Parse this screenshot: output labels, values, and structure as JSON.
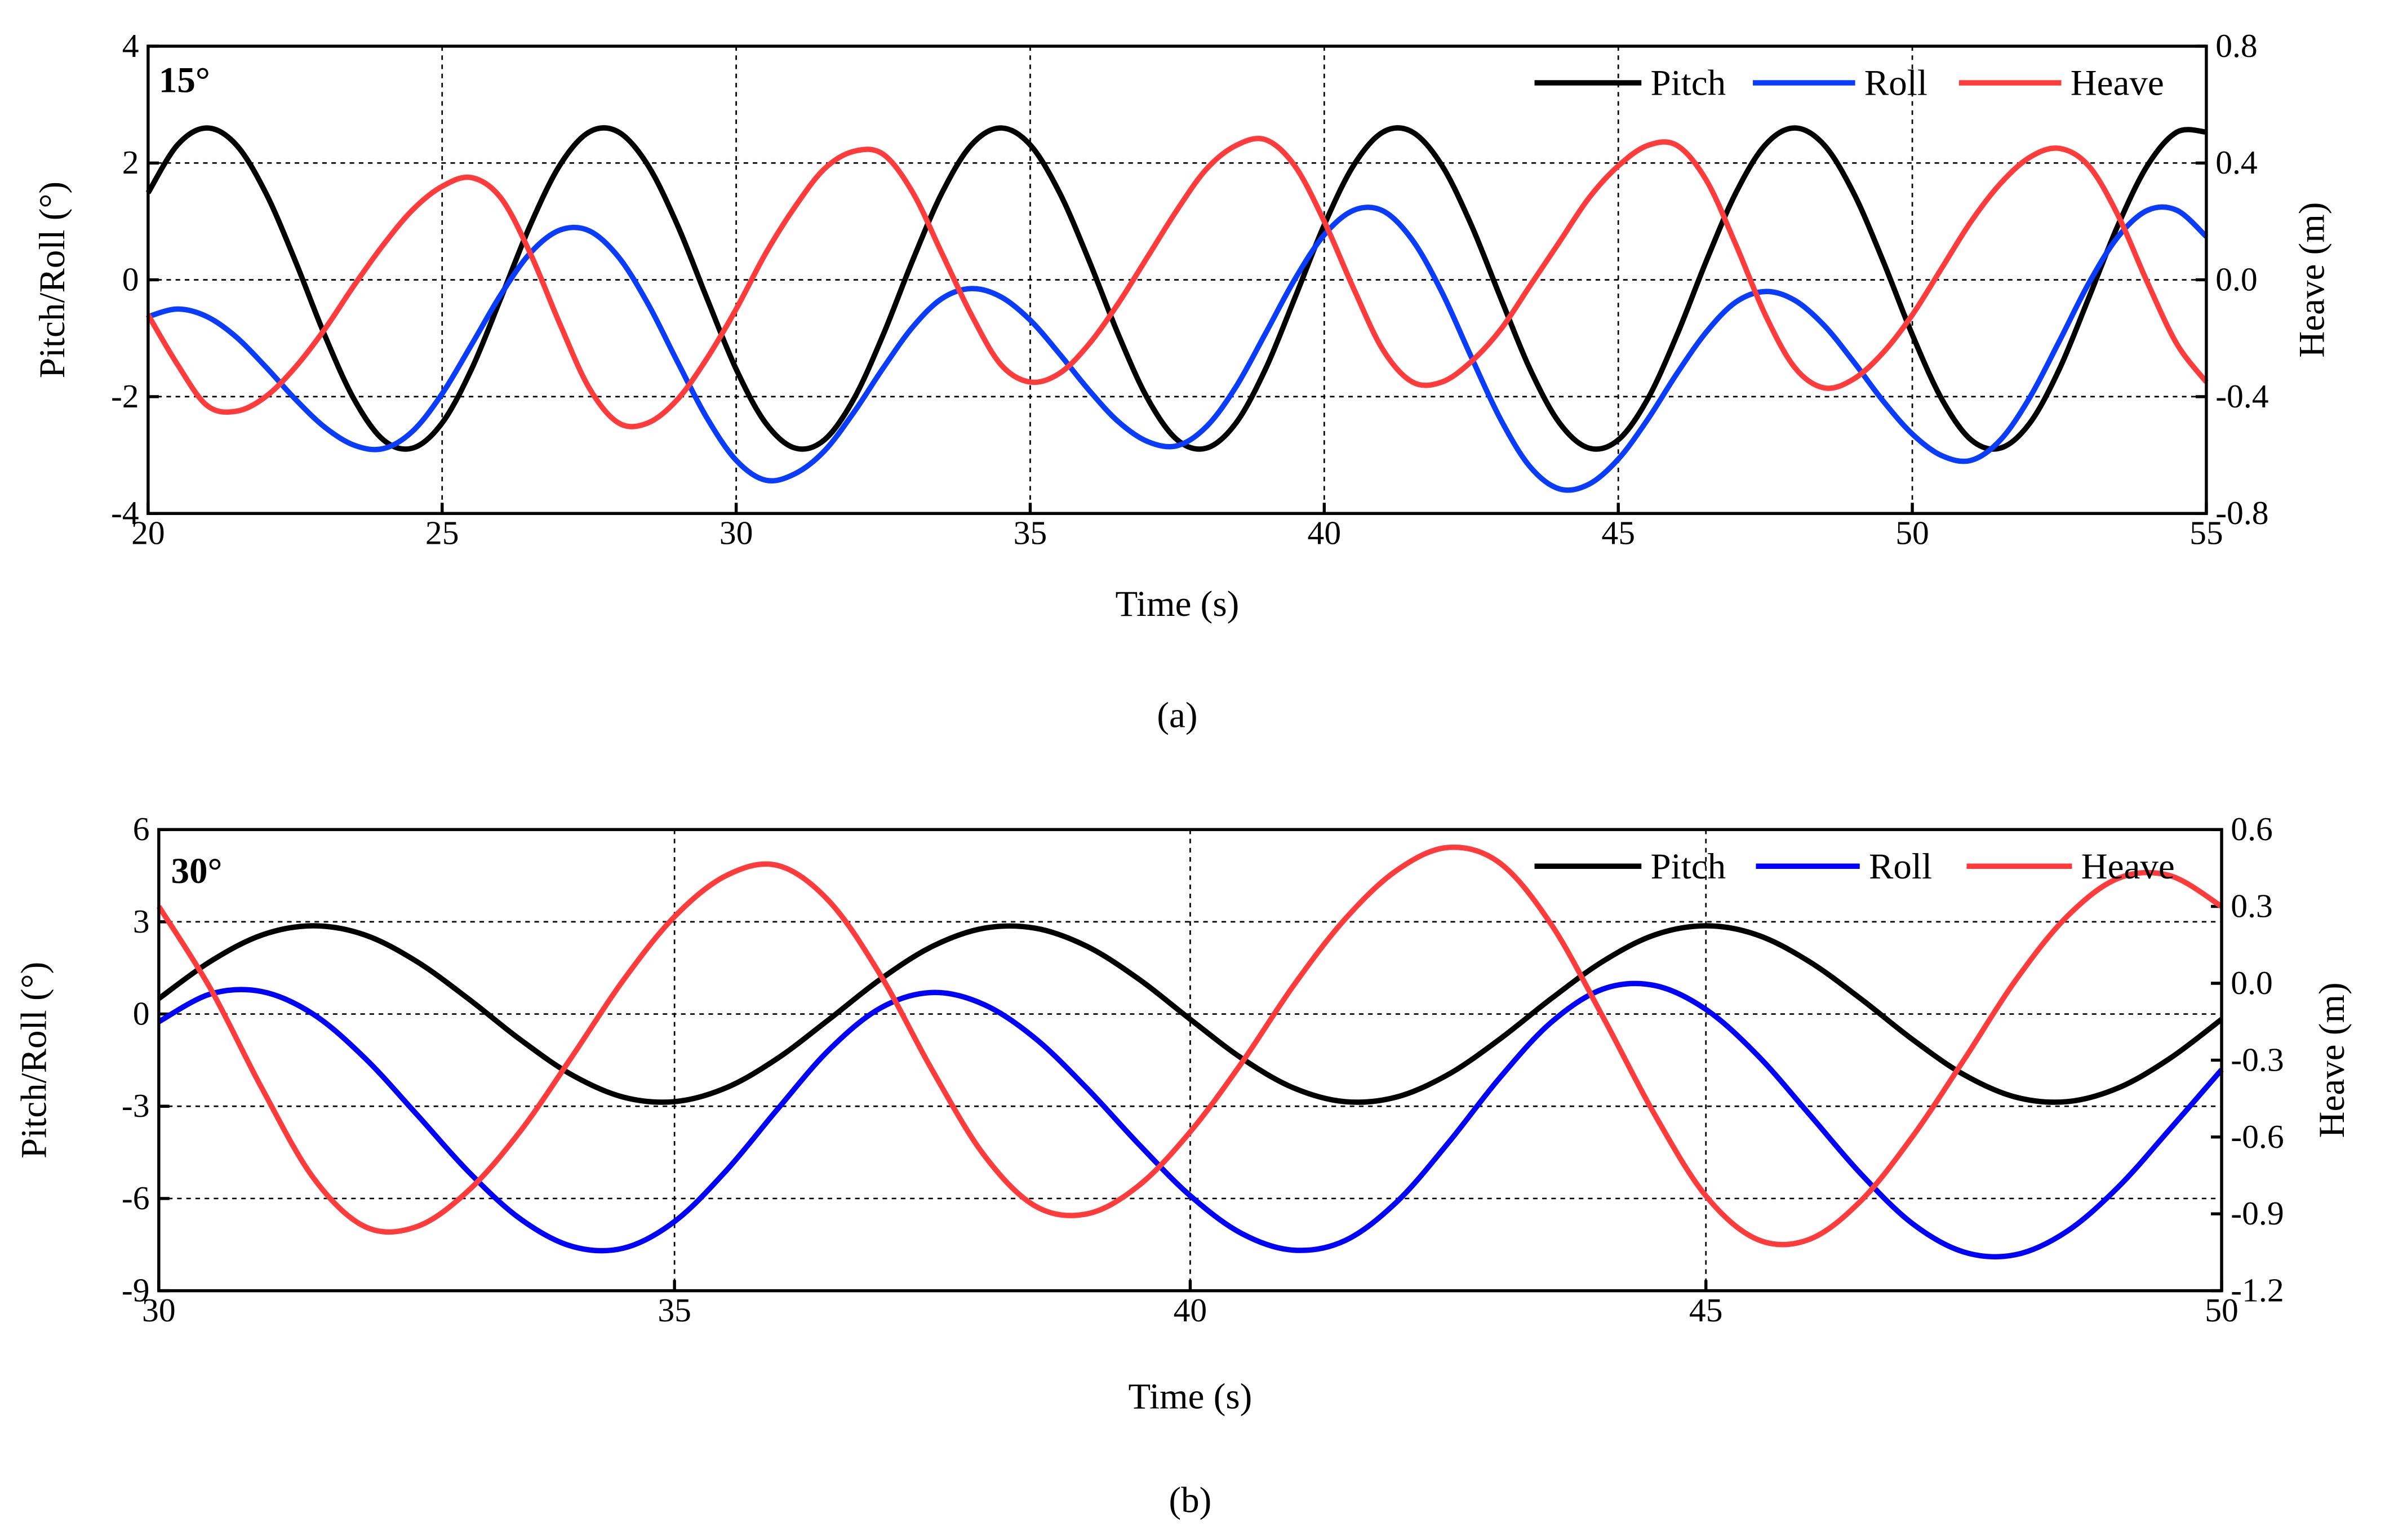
{
  "chart_data": [
    {
      "type": "line",
      "annotation": "15°",
      "caption": "(a)",
      "xlabel": "Time (s)",
      "ylabel": "Pitch/Roll (°)",
      "y2label": "Heave (m)",
      "x": [
        20,
        20.5,
        21,
        21.5,
        22,
        22.5,
        23,
        23.5,
        24,
        24.5,
        25,
        25.5,
        26,
        26.5,
        27,
        27.5,
        28,
        28.5,
        29,
        29.5,
        30,
        30.5,
        31,
        31.5,
        32,
        32.5,
        33,
        33.5,
        34,
        34.5,
        35,
        35.5,
        36,
        36.5,
        37,
        37.5,
        38,
        38.5,
        39,
        39.5,
        40,
        40.5,
        41,
        41.5,
        42,
        42.5,
        43,
        43.5,
        44,
        44.5,
        45,
        45.5,
        46,
        46.5,
        47,
        47.5,
        48,
        48.5,
        49,
        49.5,
        50,
        50.5,
        51,
        51.5,
        52,
        52.5,
        53,
        53.5,
        54,
        54.5,
        55
      ],
      "xlim": [
        20,
        55
      ],
      "xticks": [
        20,
        25,
        30,
        35,
        40,
        45,
        50,
        55
      ],
      "ylim": [
        -4,
        4
      ],
      "yticks": [
        -4,
        -2,
        0,
        2,
        4
      ],
      "y2lim": [
        -0.8,
        0.8
      ],
      "y2ticks": [
        -0.8,
        -0.4,
        {
          "value": 0,
          "label": "0.0"
        },
        0.4,
        0.8
      ],
      "grid": true,
      "legend": "upper right",
      "series": [
        {
          "name": "Pitch",
          "color": "#000000",
          "values": [
            1.49,
            2.31,
            2.6,
            2.31,
            1.49,
            0.33,
            -0.94,
            -2.04,
            -2.74,
            -2.88,
            -2.45,
            -1.53,
            -0.31,
            0.94,
            1.96,
            2.53,
            2.53,
            1.96,
            0.94,
            -0.31,
            -1.53,
            -2.45,
            -2.88,
            -2.74,
            -2.04,
            -0.94,
            0.33,
            1.49,
            2.31,
            2.6,
            2.31,
            1.49,
            0.33,
            -0.94,
            -2.04,
            -2.74,
            -2.88,
            -2.45,
            -1.53,
            -0.31,
            0.94,
            1.96,
            2.53,
            2.53,
            1.96,
            0.94,
            -0.31,
            -1.53,
            -2.45,
            -2.88,
            -2.74,
            -2.04,
            -0.94,
            0.33,
            1.49,
            2.31,
            2.6,
            2.31,
            1.49,
            0.33,
            -0.94,
            -2.04,
            -2.74,
            -2.88,
            -2.45,
            -1.53,
            -0.31,
            0.94,
            1.96,
            2.53,
            2.53
          ]
        },
        {
          "name": "Roll",
          "color": "#0a3cff",
          "values": [
            -0.63,
            -0.5,
            -0.63,
            -0.98,
            -1.49,
            -2.04,
            -2.52,
            -2.83,
            -2.89,
            -2.59,
            -1.95,
            -1.11,
            -0.25,
            0.46,
            0.85,
            0.84,
            0.39,
            -0.41,
            -1.4,
            -2.36,
            -3.09,
            -3.43,
            -3.32,
            -2.93,
            -2.27,
            -1.51,
            -0.81,
            -0.32,
            -0.15,
            -0.29,
            -0.69,
            -1.27,
            -1.89,
            -2.43,
            -2.77,
            -2.84,
            -2.51,
            -1.83,
            -0.92,
            0.01,
            0.77,
            1.19,
            1.18,
            0.68,
            -0.21,
            -1.32,
            -2.39,
            -3.2,
            -3.58,
            -3.5,
            -3.07,
            -2.39,
            -1.6,
            -0.89,
            -0.38,
            -0.2,
            -0.35,
            -0.78,
            -1.4,
            -2.07,
            -2.64,
            -3.01,
            -3.09,
            -2.74,
            -2.01,
            -1.05,
            -0.06,
            0.74,
            1.19,
            1.19,
            0.74
          ]
        },
        {
          "name": "Heave",
          "color": "#ff3b3b",
          "axis": "y2",
          "values": [
            -0.12,
            -0.29,
            -0.43,
            -0.45,
            -0.4,
            -0.3,
            -0.17,
            -0.02,
            0.12,
            0.24,
            0.32,
            0.35,
            0.28,
            0.09,
            -0.15,
            -0.37,
            -0.49,
            -0.49,
            -0.41,
            -0.27,
            -0.1,
            0.09,
            0.25,
            0.38,
            0.44,
            0.43,
            0.3,
            0.09,
            -0.12,
            -0.29,
            -0.35,
            -0.32,
            -0.22,
            -0.08,
            0.08,
            0.24,
            0.38,
            0.46,
            0.48,
            0.39,
            0.2,
            -0.03,
            -0.24,
            -0.35,
            -0.35,
            -0.28,
            -0.17,
            -0.02,
            0.13,
            0.28,
            0.39,
            0.46,
            0.46,
            0.34,
            0.12,
            -0.12,
            -0.3,
            -0.37,
            -0.34,
            -0.25,
            -0.12,
            0.04,
            0.2,
            0.33,
            0.42,
            0.45,
            0.39,
            0.22,
            -0.01,
            -0.22,
            -0.35
          ]
        }
      ]
    },
    {
      "type": "line",
      "annotation": "30°",
      "caption": "(b)",
      "xlabel": "Time (s)",
      "ylabel": "Pitch/Roll (°)",
      "y2label": "Heave (m)",
      "x": [
        30,
        30.5,
        31,
        31.5,
        32,
        32.5,
        33,
        33.5,
        34,
        34.5,
        35,
        35.5,
        36,
        36.5,
        37,
        37.5,
        38,
        38.5,
        39,
        39.5,
        40,
        40.5,
        41,
        41.5,
        42,
        42.5,
        43,
        43.5,
        44,
        44.5,
        45,
        45.5,
        46,
        46.5,
        47,
        47.5,
        48,
        48.5,
        49,
        49.5,
        50
      ],
      "xlim": [
        30,
        50
      ],
      "xticks": [
        30,
        35,
        40,
        45,
        50
      ],
      "ylim": [
        -9,
        6
      ],
      "yticks": [
        -9,
        -6,
        -3,
        0,
        3,
        6
      ],
      "y2lim": [
        -1.2,
        0.6
      ],
      "y2ticks": [
        -1.2,
        -0.9,
        -0.6,
        -0.3,
        {
          "value": 0,
          "label": "0.0"
        },
        0.3,
        0.6
      ],
      "grid": true,
      "legend": "upper right",
      "series": [
        {
          "name": "Pitch",
          "color": "#000000",
          "values": [
            0.5,
            1.71,
            2.57,
            2.87,
            2.57,
            1.71,
            0.5,
            -0.82,
            -1.97,
            -2.7,
            -2.85,
            -2.4,
            -1.44,
            -0.17,
            1.14,
            2.2,
            2.79,
            2.79,
            2.2,
            1.14,
            -0.17,
            -1.44,
            -2.4,
            -2.85,
            -2.7,
            -1.97,
            -0.82,
            0.5,
            1.71,
            2.57,
            2.87,
            2.57,
            1.71,
            0.5,
            -0.82,
            -1.97,
            -2.7,
            -2.85,
            -2.4,
            -1.44,
            -0.17
          ]
        },
        {
          "name": "Roll",
          "color": "#0000ff",
          "values": [
            -0.25,
            0.65,
            0.73,
            -0.01,
            -1.44,
            -3.26,
            -5.12,
            -6.65,
            -7.55,
            -7.62,
            -6.75,
            -5.1,
            -3.09,
            -1.16,
            0.2,
            0.7,
            0.31,
            -0.8,
            -2.42,
            -4.23,
            -5.91,
            -7.14,
            -7.68,
            -7.37,
            -6.12,
            -4.2,
            -2.08,
            -0.27,
            0.81,
            0.93,
            0.15,
            -1.34,
            -3.25,
            -5.19,
            -6.81,
            -7.74,
            -7.83,
            -7.07,
            -5.62,
            -3.74,
            -1.81
          ]
        },
        {
          "name": "Heave",
          "color": "#ff3b3b",
          "axis": "y2",
          "values": [
            0.3,
            -0.02,
            -0.41,
            -0.76,
            -0.95,
            -0.95,
            -0.81,
            -0.58,
            -0.29,
            0.01,
            0.26,
            0.42,
            0.46,
            0.32,
            0.03,
            -0.34,
            -0.67,
            -0.87,
            -0.9,
            -0.79,
            -0.58,
            -0.31,
            -0.01,
            0.25,
            0.44,
            0.53,
            0.47,
            0.23,
            -0.13,
            -0.51,
            -0.83,
            -1.0,
            -1.0,
            -0.85,
            -0.6,
            -0.3,
            0.01,
            0.26,
            0.41,
            0.42,
            0.3
          ]
        }
      ]
    }
  ]
}
